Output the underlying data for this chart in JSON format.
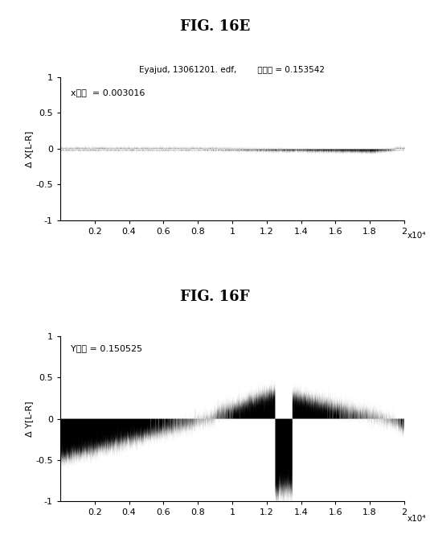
{
  "fig_title_top": "FIG. 16E",
  "fig_title_bottom": "FIG. 16F",
  "subtitle_top": "Eyajud, 13061201. edf,        全分散 = 0.153542",
  "annotation_top": "x分散  = 0.003016",
  "annotation_bottom": "Y分散 = 0.150525",
  "ylabel_top": "Δ X[L-R]",
  "ylabel_bottom": "Δ Y[L-R]",
  "xlim": [
    0,
    20000
  ],
  "ylim": [
    -1,
    1
  ],
  "xticks": [
    2000,
    4000,
    6000,
    8000,
    10000,
    12000,
    14000,
    16000,
    18000,
    20000
  ],
  "xticklabels": [
    "0.2",
    "0.4",
    "0.6",
    "0.8",
    "1",
    "1.2",
    "1.4",
    "1.6",
    "1.8",
    "2"
  ],
  "xlabel_sci": "x10⁴",
  "yticks": [
    -1,
    -0.5,
    0,
    0.5,
    1
  ],
  "yticklabels": [
    "-1",
    "-0.5",
    "0",
    "0.5",
    "1"
  ],
  "line_color": "#000000",
  "background_color": "#ffffff",
  "n_points": 20000
}
